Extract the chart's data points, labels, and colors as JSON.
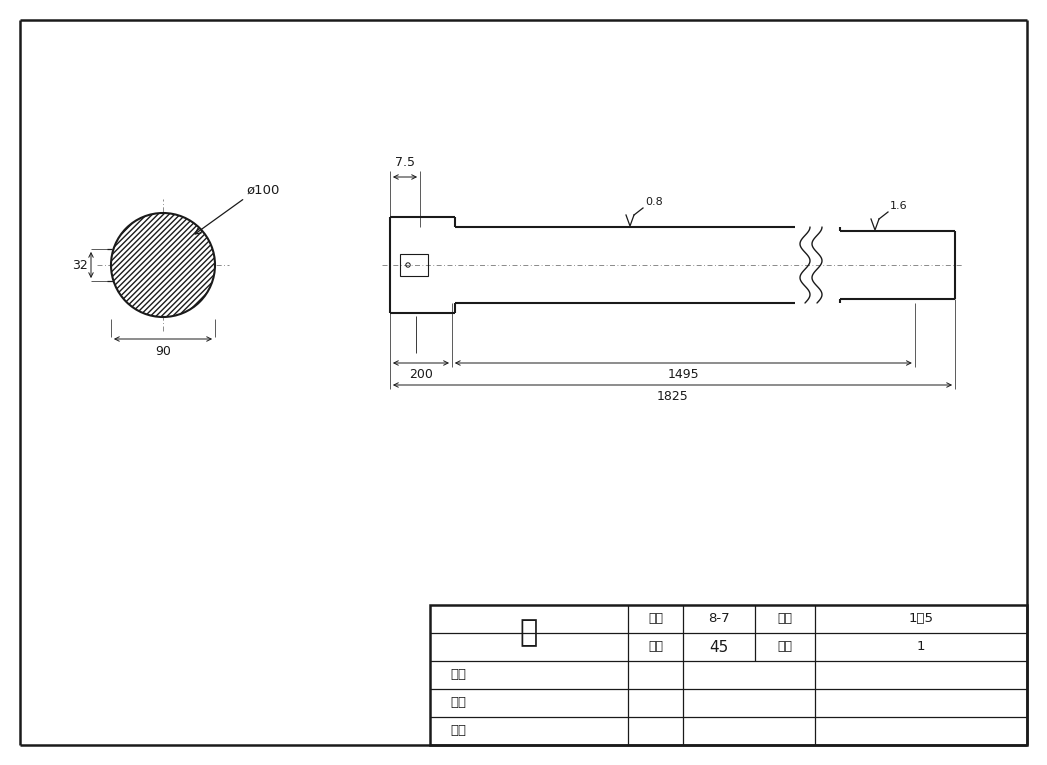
{
  "bg_color": "#ffffff",
  "line_color": "#1a1a1a",
  "title": "轴",
  "drawing_number": "8-7",
  "scale": "1：5",
  "material": "45",
  "quantity": "1",
  "table_rows": [
    "设计",
    "审核",
    "日期"
  ],
  "dim_7_5": "7.5",
  "dim_200": "200",
  "dim_1495": "1495",
  "dim_1825": "1825",
  "dim_phi100": "ø100",
  "dim_32": "32",
  "dim_90": "90",
  "dim_0_8": "0.8",
  "dim_1_6": "1.6"
}
